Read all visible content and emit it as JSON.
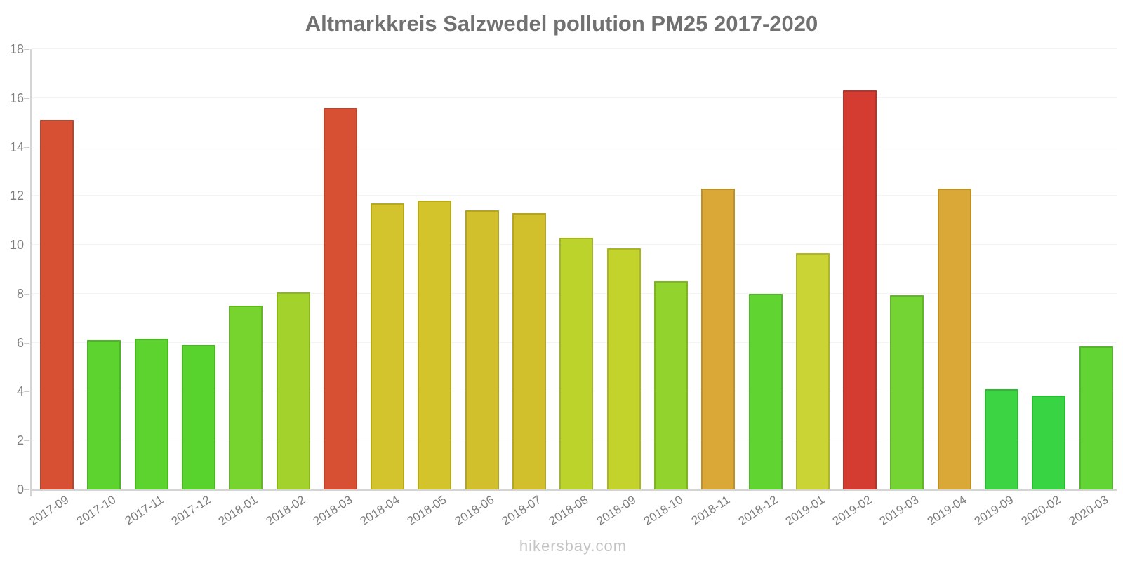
{
  "header": {
    "title": "Altmarkkreis Salzwedel pollution PM25 2017-2020"
  },
  "footer": {
    "watermark": "hikersbay.com"
  },
  "chart_data": {
    "type": "bar",
    "title": "Altmarkkreis Salzwedel pollution PM25 2017-2020",
    "xlabel": "",
    "ylabel": "",
    "ylim": [
      0,
      18
    ],
    "yticks": [
      0,
      2,
      4,
      6,
      8,
      10,
      12,
      14,
      16,
      18
    ],
    "grid": true,
    "legend": false,
    "categories": [
      "2017-09",
      "2017-10",
      "2017-11",
      "2017-12",
      "2018-01",
      "2018-02",
      "2018-03",
      "2018-04",
      "2018-05",
      "2018-06",
      "2018-07",
      "2018-08",
      "2018-09",
      "2018-10",
      "2018-11",
      "2018-12",
      "2019-01",
      "2019-02",
      "2019-03",
      "2019-04",
      "2019-09",
      "2020-02",
      "2020-03"
    ],
    "values": [
      15.1,
      6.1,
      6.15,
      5.9,
      7.5,
      8.05,
      15.6,
      11.7,
      11.8,
      11.4,
      11.3,
      10.3,
      9.85,
      8.5,
      12.3,
      8.0,
      9.65,
      16.3,
      7.95,
      12.3,
      4.1,
      3.85,
      5.85
    ],
    "bar_colors": [
      "#d75034",
      "#5cd32e",
      "#5cd32e",
      "#58d32e",
      "#77d32e",
      "#a3d22c",
      "#d75034",
      "#d3c32c",
      "#d3c42c",
      "#d1bf2b",
      "#d1bf2b",
      "#bcd32b",
      "#c3d32b",
      "#92d32d",
      "#d9a836",
      "#60d431",
      "#cad434",
      "#d43c31",
      "#73d433",
      "#d9a836",
      "#3cd443",
      "#39d443",
      "#62d434"
    ],
    "colors": {
      "title": "#717171",
      "axis_labels": "#7d7d7d",
      "axis_line": "#d4d4d4",
      "tick": "#cccccc",
      "gridline": "#f4f4f4",
      "watermark": "#c4c4c4",
      "background": "#ffffff"
    }
  }
}
